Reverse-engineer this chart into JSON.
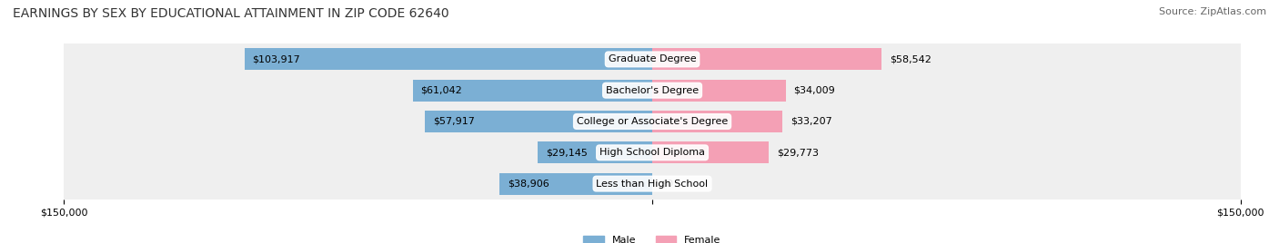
{
  "title": "EARNINGS BY SEX BY EDUCATIONAL ATTAINMENT IN ZIP CODE 62640",
  "source": "Source: ZipAtlas.com",
  "categories": [
    "Less than High School",
    "High School Diploma",
    "College or Associate's Degree",
    "Bachelor's Degree",
    "Graduate Degree"
  ],
  "male_values": [
    38906,
    29145,
    57917,
    61042,
    103917
  ],
  "female_values": [
    0,
    29773,
    33207,
    34009,
    58542
  ],
  "male_color": "#7bafd4",
  "female_color": "#f4a0b5",
  "male_label": "Male",
  "female_label": "Female",
  "max_val": 150000,
  "bg_row_color": "#efefef",
  "axis_label_left": "$150,000",
  "axis_label_right": "$150,000",
  "title_fontsize": 10,
  "source_fontsize": 8,
  "bar_label_fontsize": 8,
  "category_fontsize": 8
}
